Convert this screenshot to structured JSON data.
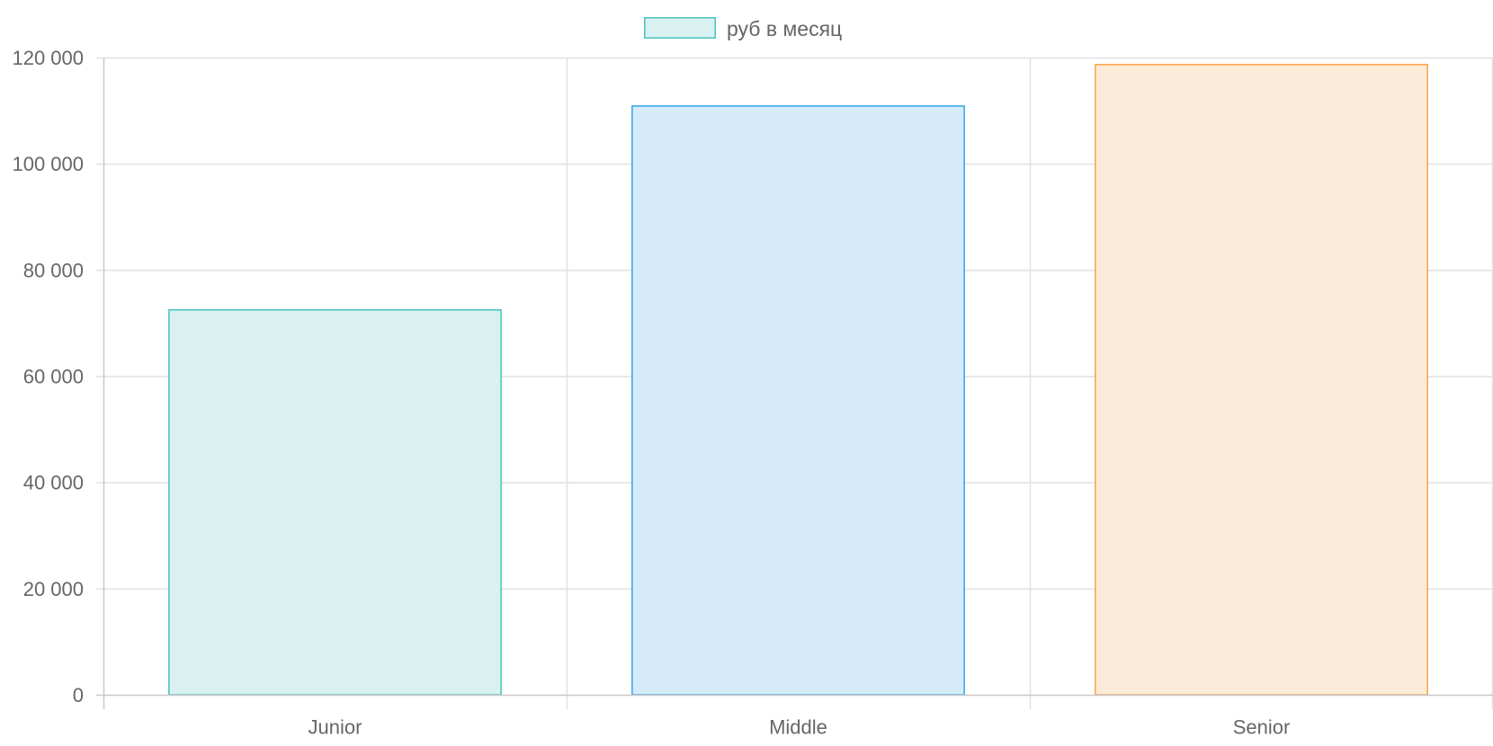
{
  "chart_data": {
    "type": "bar",
    "categories": [
      "Junior",
      "Middle",
      "Senior"
    ],
    "series": [
      {
        "name": "руб в месяц",
        "values": [
          72600,
          111000,
          118800
        ]
      }
    ],
    "ylim": [
      0,
      120000
    ],
    "yticks": [
      {
        "value": 0,
        "label": "0"
      },
      {
        "value": 20000,
        "label": "20 000"
      },
      {
        "value": 40000,
        "label": "40 000"
      },
      {
        "value": 60000,
        "label": "60 000"
      },
      {
        "value": 80000,
        "label": "80 000"
      },
      {
        "value": 100000,
        "label": "100 000"
      },
      {
        "value": 120000,
        "label": "120 000"
      }
    ],
    "grid": true,
    "legend_position": "top-center",
    "bar_fill_colors": [
      "#d9f1f1",
      "#d6ebf9",
      "#fdebd9"
    ],
    "bar_border_colors": [
      "#4bc0c0",
      "#36a2eb",
      "#ff9f40"
    ],
    "legend_swatch_fill": "#d9f1f1",
    "legend_swatch_border": "#4bc0c0",
    "grid_color": "#e1e1e1",
    "axis_color": "#c8c8c8",
    "text_color": "#666666"
  }
}
